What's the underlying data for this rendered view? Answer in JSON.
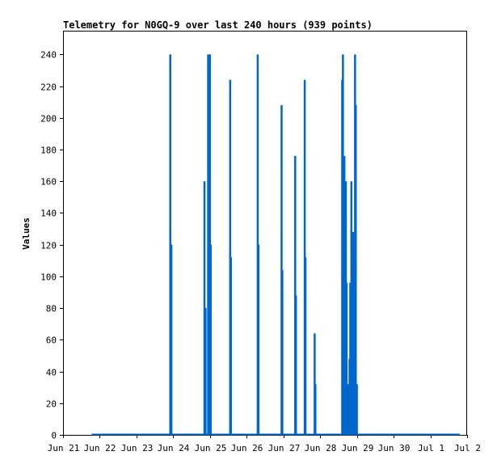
{
  "chart_data": {
    "type": "bar",
    "title": "Telemetry for N0GQ-9 over last 240 hours (939 points)",
    "xlabel": "",
    "ylabel": "Values",
    "ylim": [
      0,
      255
    ],
    "xlim_days": [
      0,
      11
    ],
    "x_ticks": [
      "Jun 21",
      "Jun 22",
      "Jun 23",
      "Jun 24",
      "Jun 25",
      "Jun 26",
      "Jun 27",
      "Jun 28",
      "Jun 29",
      "Jun 30",
      "Jul 1",
      "Jul 2"
    ],
    "y_ticks": [
      0,
      20,
      40,
      60,
      80,
      100,
      120,
      140,
      160,
      180,
      200,
      220,
      240
    ],
    "baseline_days": [
      0.78,
      10.8
    ],
    "series": [
      {
        "color": "#0066cc",
        "points": [
          {
            "day": 2.92,
            "value": 240
          },
          {
            "day": 2.95,
            "value": 120
          },
          {
            "day": 3.85,
            "value": 160
          },
          {
            "day": 3.88,
            "value": 80
          },
          {
            "day": 3.95,
            "value": 240
          },
          {
            "day": 3.97,
            "value": 120
          },
          {
            "day": 4.0,
            "value": 240
          },
          {
            "day": 4.02,
            "value": 120
          },
          {
            "day": 4.55,
            "value": 224
          },
          {
            "day": 4.57,
            "value": 112
          },
          {
            "day": 5.3,
            "value": 240
          },
          {
            "day": 5.32,
            "value": 120
          },
          {
            "day": 5.95,
            "value": 208
          },
          {
            "day": 5.97,
            "value": 104
          },
          {
            "day": 6.32,
            "value": 176
          },
          {
            "day": 6.34,
            "value": 88
          },
          {
            "day": 6.58,
            "value": 224
          },
          {
            "day": 6.6,
            "value": 112
          },
          {
            "day": 6.85,
            "value": 64
          },
          {
            "day": 6.87,
            "value": 32
          },
          {
            "day": 7.6,
            "value": 224
          },
          {
            "day": 7.62,
            "value": 240
          },
          {
            "day": 7.64,
            "value": 176
          },
          {
            "day": 7.66,
            "value": 176
          },
          {
            "day": 7.7,
            "value": 160
          },
          {
            "day": 7.72,
            "value": 96
          },
          {
            "day": 7.75,
            "value": 16
          },
          {
            "day": 7.77,
            "value": 32
          },
          {
            "day": 7.8,
            "value": 48
          },
          {
            "day": 7.82,
            "value": 96
          },
          {
            "day": 7.85,
            "value": 160
          },
          {
            "day": 7.87,
            "value": 128
          },
          {
            "day": 7.9,
            "value": 128
          },
          {
            "day": 7.92,
            "value": 112
          },
          {
            "day": 7.95,
            "value": 240
          },
          {
            "day": 7.97,
            "value": 208
          },
          {
            "day": 8.0,
            "value": 32
          }
        ]
      }
    ]
  }
}
